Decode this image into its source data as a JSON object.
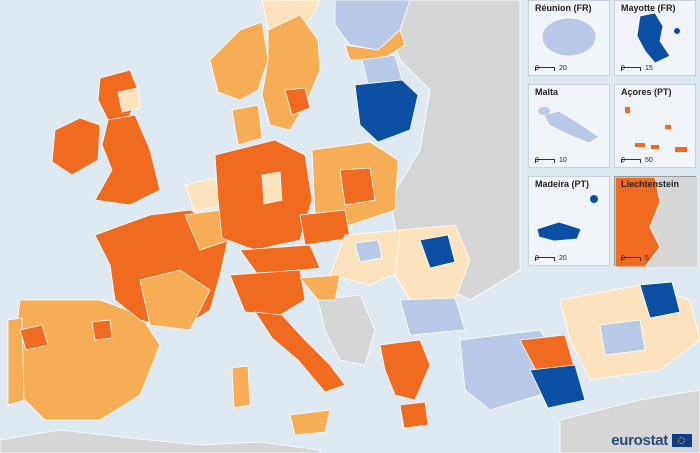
{
  "colors": {
    "sea": "#dfe9f2",
    "non_eu": "#d6d6d6",
    "border": "#ffffff",
    "class_1": "#f06a1f",
    "class_2": "#f6ad55",
    "class_3": "#fde3bd",
    "class_4": "#b9c9e8",
    "class_5": "#0b4fa3"
  },
  "insets": [
    {
      "name": "Réunion (FR)",
      "scale_left": "0",
      "scale_right": "20",
      "color_class": "class_4"
    },
    {
      "name": "Mayotte (FR)",
      "scale_left": "0",
      "scale_right": "15",
      "color_class": "class_5"
    },
    {
      "name": "Malta",
      "scale_left": "0",
      "scale_right": "10",
      "color_class": "class_4"
    },
    {
      "name": "Açores (PT)",
      "scale_left": "0",
      "scale_right": "50",
      "color_class": "class_1"
    },
    {
      "name": "Madeira (PT)",
      "scale_left": "0",
      "scale_right": "20",
      "color_class": "class_5"
    },
    {
      "name": "Liechtenstein",
      "scale_left": "0",
      "scale_right": "5",
      "color_class": "class_1"
    }
  ],
  "logo": {
    "text": "eurostat"
  }
}
